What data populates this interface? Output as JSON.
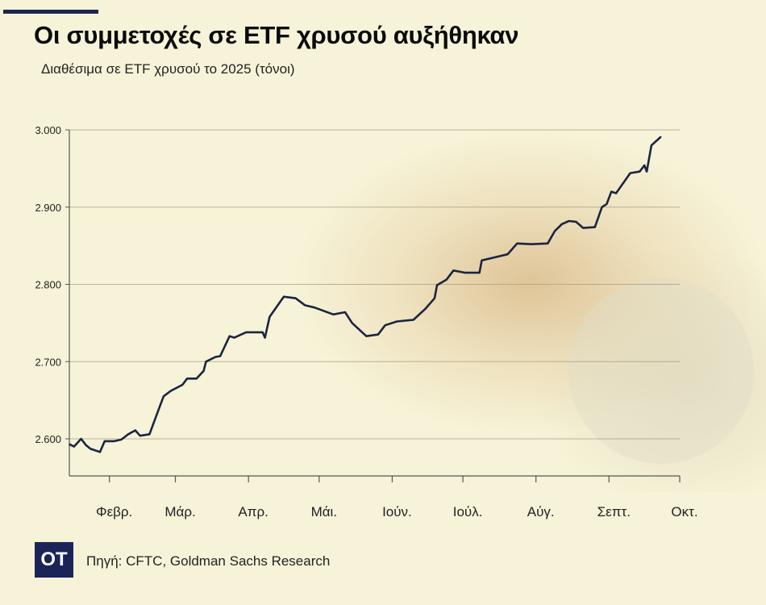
{
  "header": {
    "title": "Οι συμμετοχές σε ETF χρυσού αυξήθηκαν",
    "subtitle": "Διαθέσιμα σε ETF χρυσού το 2025 (τόνοι)"
  },
  "footer": {
    "logo_text": "OT",
    "source": "Πηγή: CFTC, Goldman Sachs Research"
  },
  "colors": {
    "line": "#1a2540",
    "background": "#f6f3d8",
    "logo": "#1b2459"
  },
  "chart_data": {
    "type": "line",
    "title": "Οι συμμετοχές σε ETF χρυσού αυξήθηκαν",
    "subtitle": "Διαθέσιμα σε ETF χρυσού το 2025 (τόνοι)",
    "xlabel": "",
    "ylabel": "",
    "xlim": [
      "2025-01-15",
      "2025-10-01"
    ],
    "ylim": [
      2552,
      3000
    ],
    "grid": true,
    "yticks": [
      2600,
      2700,
      2800,
      2900,
      3000
    ],
    "ytick_labels": [
      "2.600",
      "2.700",
      "2.800",
      "2.900",
      "3.000"
    ],
    "xticks": [
      "2025-02-01",
      "2025-03-01",
      "2025-04-01",
      "2025-05-01",
      "2025-06-01",
      "2025-07-01",
      "2025-08-01",
      "2025-09-01",
      "2025-10-01"
    ],
    "xtick_labels": [
      "Φεβρ.",
      "Μάρ.",
      "Απρ.",
      "Μάι.",
      "Ιούν.",
      "Ιούλ.",
      "Αύγ.",
      "Σεπτ.",
      "Οκτ."
    ],
    "series": [
      {
        "x": [
          "2025-01-15",
          "2025-01-17",
          "2025-01-20",
          "2025-01-22",
          "2025-01-24",
          "2025-01-28",
          "2025-01-30",
          "2025-02-03",
          "2025-02-06",
          "2025-02-09",
          "2025-02-12",
          "2025-02-14",
          "2025-02-18",
          "2025-02-22",
          "2025-02-24",
          "2025-02-27",
          "2025-03-04",
          "2025-03-06",
          "2025-03-10",
          "2025-03-13",
          "2025-03-14",
          "2025-03-18",
          "2025-03-20",
          "2025-03-24",
          "2025-03-26",
          "2025-03-31",
          "2025-04-07",
          "2025-04-08",
          "2025-04-10",
          "2025-04-16",
          "2025-04-21",
          "2025-04-25",
          "2025-04-29",
          "2025-05-07",
          "2025-05-12",
          "2025-05-15",
          "2025-05-21",
          "2025-05-26",
          "2025-05-29",
          "2025-06-03",
          "2025-06-10",
          "2025-06-15",
          "2025-06-19",
          "2025-06-20",
          "2025-06-24",
          "2025-06-27",
          "2025-07-02",
          "2025-07-08",
          "2025-07-09",
          "2025-07-16",
          "2025-07-20",
          "2025-07-24",
          "2025-07-30",
          "2025-08-06",
          "2025-08-09",
          "2025-08-12",
          "2025-08-15",
          "2025-08-18",
          "2025-08-21",
          "2025-08-26",
          "2025-08-29",
          "2025-08-31",
          "2025-09-02",
          "2025-09-04",
          "2025-09-10",
          "2025-09-14",
          "2025-09-16",
          "2025-09-17",
          "2025-09-19",
          "2025-09-23"
        ],
        "y": [
          2593,
          2590,
          2600,
          2592,
          2587,
          2583,
          2597,
          2597,
          2599,
          2606,
          2611,
          2604,
          2606,
          2639,
          2655,
          2662,
          2670,
          2678,
          2678,
          2688,
          2700,
          2706,
          2707,
          2733,
          2731,
          2738,
          2738,
          2731,
          2758,
          2784,
          2782,
          2773,
          2770,
          2761,
          2764,
          2750,
          2733,
          2735,
          2747,
          2752,
          2754,
          2768,
          2782,
          2799,
          2806,
          2818,
          2815,
          2815,
          2831,
          2836,
          2839,
          2853,
          2852,
          2853,
          2869,
          2878,
          2882,
          2881,
          2873,
          2874,
          2900,
          2904,
          2920,
          2918,
          2944,
          2946,
          2954,
          2946,
          2980,
          2991
        ]
      }
    ]
  }
}
